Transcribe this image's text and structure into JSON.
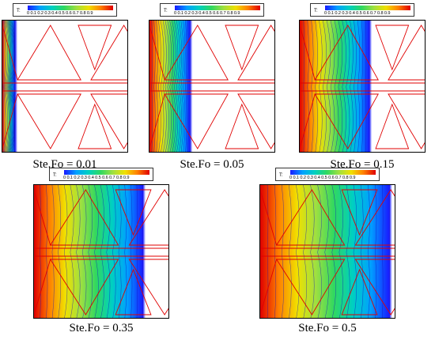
{
  "legend": {
    "label": "T:",
    "ticks": "0  0.1 0.2 0.3 0.4 0.5 0.6 0.7 0.8 0.9"
  },
  "panels": [
    {
      "caption": "Ste.Fo = 0.01",
      "front": 0.1
    },
    {
      "caption": "Ste.Fo = 0.05",
      "front": 0.32
    },
    {
      "caption": "Ste.Fo = 0.15",
      "front": 0.55
    },
    {
      "caption": "Ste.Fo = 0.35",
      "front": 0.8
    },
    {
      "caption": "Ste.Fo = 0.5",
      "front": 0.95
    }
  ],
  "colors": {
    "fin_outline": "#e00000",
    "isoline": "#1010c0",
    "gradient": [
      "#e00000",
      "#ff8000",
      "#f0e000",
      "#a0e040",
      "#30d860",
      "#00d0c0",
      "#00a0ff",
      "#1a1aff"
    ]
  }
}
